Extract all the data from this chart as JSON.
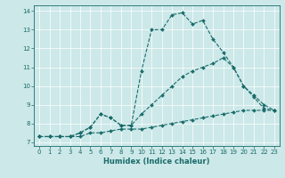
{
  "xlabel": "Humidex (Indice chaleur)",
  "xlim": [
    -0.5,
    23.5
  ],
  "ylim": [
    6.8,
    14.3
  ],
  "yticks": [
    7,
    8,
    9,
    10,
    11,
    12,
    13,
    14
  ],
  "xticks": [
    0,
    1,
    2,
    3,
    4,
    5,
    6,
    7,
    8,
    9,
    10,
    11,
    12,
    13,
    14,
    15,
    16,
    17,
    18,
    19,
    20,
    21,
    22,
    23
  ],
  "background_color": "#cce8e8",
  "line_color": "#1a6b6b",
  "series": [
    {
      "x": [
        0,
        1,
        2,
        3,
        4,
        5,
        6,
        7,
        8,
        9,
        10,
        11,
        12,
        13,
        14,
        15,
        16,
        17,
        18,
        19,
        20,
        21,
        22,
        23
      ],
      "y": [
        7.3,
        7.3,
        7.3,
        7.3,
        7.3,
        7.5,
        7.5,
        7.6,
        7.7,
        7.7,
        7.7,
        7.8,
        7.9,
        8.0,
        8.1,
        8.2,
        8.3,
        8.4,
        8.5,
        8.6,
        8.7,
        8.7,
        8.7,
        8.7
      ]
    },
    {
      "x": [
        0,
        1,
        2,
        3,
        4,
        5,
        6,
        7,
        8,
        9,
        10,
        11,
        12,
        13,
        14,
        15,
        16,
        17,
        18,
        19,
        20,
        21,
        22,
        23
      ],
      "y": [
        7.3,
        7.3,
        7.3,
        7.3,
        7.5,
        7.8,
        8.5,
        8.3,
        7.9,
        7.9,
        8.5,
        9.0,
        9.5,
        10.0,
        10.5,
        10.8,
        11.0,
        11.2,
        11.5,
        11.0,
        10.0,
        9.5,
        9.0,
        8.7
      ]
    },
    {
      "x": [
        0,
        1,
        2,
        3,
        4,
        5,
        6,
        7,
        8,
        9,
        10,
        11,
        12,
        13,
        14,
        15,
        16,
        17,
        18,
        19,
        20,
        21,
        22,
        23
      ],
      "y": [
        7.3,
        7.3,
        7.3,
        7.3,
        7.5,
        7.8,
        8.5,
        8.3,
        7.9,
        7.9,
        10.8,
        13.0,
        13.0,
        13.8,
        13.9,
        13.3,
        13.5,
        12.5,
        11.8,
        11.0,
        10.0,
        9.4,
        8.8,
        8.7
      ]
    }
  ]
}
